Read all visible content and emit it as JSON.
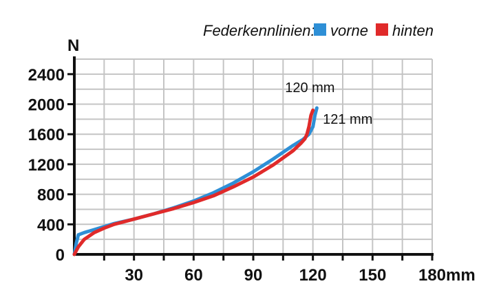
{
  "chart_data": {
    "type": "line",
    "legend": {
      "title": "Federkennlinien:",
      "placement": "top-right"
    },
    "xlabel": "mm",
    "ylabel": "N",
    "xlim": [
      0,
      180
    ],
    "ylim": [
      0,
      2600
    ],
    "x_ticks": [
      30,
      60,
      90,
      120,
      150,
      180
    ],
    "y_ticks": [
      0,
      400,
      800,
      1200,
      1600,
      2000,
      2400
    ],
    "grid": true,
    "series": [
      {
        "name": "vorne",
        "color": "#2e8fd6",
        "x": [
          0,
          1,
          2,
          5,
          10,
          15,
          20,
          30,
          40,
          50,
          60,
          70,
          80,
          90,
          100,
          110,
          115,
          118,
          120,
          121,
          122
        ],
        "y": [
          0,
          150,
          260,
          290,
          330,
          370,
          410,
          470,
          540,
          620,
          710,
          820,
          950,
          1100,
          1270,
          1450,
          1530,
          1600,
          1700,
          1850,
          1950
        ]
      },
      {
        "name": "hinten",
        "color": "#e02a2a",
        "x": [
          0,
          1,
          2,
          5,
          10,
          15,
          20,
          30,
          40,
          50,
          60,
          70,
          80,
          90,
          100,
          110,
          114,
          116,
          117,
          118,
          119,
          120
        ],
        "y": [
          0,
          50,
          100,
          200,
          290,
          350,
          400,
          470,
          540,
          610,
          690,
          780,
          900,
          1030,
          1190,
          1380,
          1480,
          1540,
          1600,
          1700,
          1850,
          1920
        ]
      }
    ],
    "annotations": [
      {
        "text": "120 mm",
        "x": 106,
        "y": 2160
      },
      {
        "text": "121 mm",
        "x": 125,
        "y": 1740
      }
    ]
  }
}
